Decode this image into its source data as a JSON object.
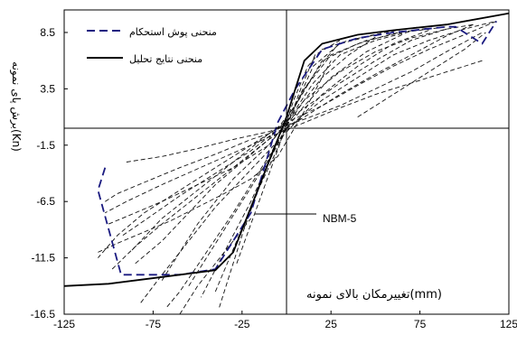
{
  "chart_data": {
    "type": "line",
    "title": "",
    "xlabel": "تغییرمکان بالای نمونه(mm)",
    "ylabel": "برش پای نمونه(Kn)",
    "xlim": [
      -125,
      125
    ],
    "ylim": [
      -16.5,
      10.5
    ],
    "xticks": [
      "-125",
      "-75",
      "-25",
      "25",
      "75",
      "125"
    ],
    "yticks": [
      "8.5",
      "3.5",
      "-1.5",
      "-6.5",
      "-11.5",
      "-16.5"
    ],
    "legend_position": "top-left",
    "annotation": "NBM-5",
    "series": [
      {
        "name": "منحنی پوش استحکام",
        "style": "dashed",
        "color": "#1a1a80",
        "x": [
          -102,
          -106,
          -93,
          -70,
          -60,
          -40,
          -20,
          -5,
          5,
          20,
          40,
          60,
          90,
          95,
          110,
          118
        ],
        "y": [
          -3.5,
          -5.5,
          -13.0,
          -13.0,
          -13.0,
          -12.5,
          -7.5,
          0.5,
          3.5,
          7.0,
          8.0,
          8.5,
          9.0,
          9.0,
          7.5,
          9.5
        ]
      },
      {
        "name": "منحنی نتایج تحلیل",
        "style": "solid",
        "color": "#000000",
        "x": [
          -125,
          -100,
          -80,
          -60,
          -40,
          -30,
          -15,
          0,
          5,
          10,
          20,
          40,
          60,
          90,
          125
        ],
        "y": [
          -14.0,
          -13.8,
          -13.4,
          -13.0,
          -12.6,
          -11.0,
          -5.0,
          1.0,
          3.5,
          6.0,
          7.5,
          8.3,
          8.7,
          9.2,
          10.2
        ]
      }
    ],
    "hysteresis_loops": [
      {
        "x": [
          -102,
          -95,
          -80,
          -60,
          -40,
          -20,
          0,
          20,
          40,
          60,
          80,
          100,
          110,
          118
        ],
        "y": [
          -6.5,
          -5.8,
          -4.8,
          -3.5,
          -2.3,
          -1.0,
          0.0,
          2.5,
          4.5,
          6.5,
          7.8,
          8.8,
          9.2,
          9.5
        ]
      },
      {
        "x": [
          118,
          100,
          80,
          60,
          40,
          20,
          0,
          -20,
          -40,
          -60,
          -80,
          -95,
          -106
        ],
        "y": [
          9.5,
          8.3,
          7.0,
          5.5,
          3.8,
          2.0,
          0.5,
          -1.5,
          -3.5,
          -5.5,
          -7.5,
          -9.5,
          -11.5
        ]
      },
      {
        "x": [
          -100,
          -85,
          -70,
          -50,
          -30,
          -10,
          10,
          30,
          50,
          70,
          90,
          105
        ],
        "y": [
          -8.5,
          -7.5,
          -6.5,
          -5.0,
          -3.5,
          -1.5,
          2.5,
          5.0,
          6.8,
          8.0,
          8.8,
          9.2
        ]
      },
      {
        "x": [
          105,
          90,
          70,
          50,
          30,
          10,
          -10,
          -30,
          -50,
          -70,
          -85,
          -98
        ],
        "y": [
          9.2,
          8.2,
          6.5,
          4.8,
          3.0,
          1.0,
          -1.0,
          -3.5,
          -6.0,
          -8.5,
          -10.5,
          -12.5
        ]
      },
      {
        "x": [
          -92,
          -80,
          -60,
          -40,
          -20,
          0,
          15,
          30,
          50,
          70,
          90
        ],
        "y": [
          -9.5,
          -8.2,
          -6.0,
          -4.0,
          -2.0,
          0.5,
          4.0,
          6.5,
          7.8,
          8.6,
          9.0
        ]
      },
      {
        "x": [
          90,
          70,
          50,
          30,
          10,
          -10,
          -30,
          -50,
          -70,
          -88
        ],
        "y": [
          8.8,
          7.8,
          6.0,
          4.0,
          1.8,
          -0.5,
          -3.0,
          -5.5,
          -8.0,
          -11.0
        ]
      },
      {
        "x": [
          -85,
          -70,
          -55,
          -40,
          -25,
          -10,
          5,
          20,
          40,
          60,
          80
        ],
        "y": [
          -12.0,
          -10.0,
          -7.5,
          -5.0,
          -3.0,
          -1.0,
          2.0,
          6.0,
          7.5,
          8.4,
          8.9
        ]
      },
      {
        "x": [
          80,
          60,
          40,
          20,
          5,
          -10,
          -25,
          -40,
          -55,
          -70,
          -82
        ],
        "y": [
          8.7,
          7.5,
          5.5,
          3.0,
          0.5,
          -2.0,
          -4.5,
          -7.0,
          -10.0,
          -13.0,
          -15.5
        ]
      },
      {
        "x": [
          -70,
          -60,
          -50,
          -40,
          -30,
          -20,
          -10,
          0,
          10,
          25,
          45,
          65
        ],
        "y": [
          -13.5,
          -11.0,
          -8.5,
          -6.5,
          -4.5,
          -3.0,
          -1.5,
          0.5,
          3.5,
          6.5,
          7.8,
          8.5
        ]
      },
      {
        "x": [
          65,
          45,
          25,
          10,
          0,
          -10,
          -20,
          -30,
          -45,
          -60,
          -68
        ],
        "y": [
          8.3,
          6.8,
          4.5,
          2.0,
          0.0,
          -2.5,
          -5.0,
          -7.5,
          -11.0,
          -14.5,
          -16.0
        ]
      },
      {
        "x": [
          -55,
          -45,
          -35,
          -25,
          -15,
          -5,
          5,
          15,
          30,
          50
        ],
        "y": [
          -14.0,
          -11.5,
          -9.0,
          -6.5,
          -4.0,
          -1.5,
          2.0,
          5.5,
          7.5,
          8.3
        ]
      },
      {
        "x": [
          50,
          35,
          20,
          10,
          0,
          -10,
          -20,
          -35,
          -48
        ],
        "y": [
          8.1,
          6.5,
          4.5,
          2.5,
          0.2,
          -3.0,
          -6.5,
          -11.0,
          -15.0
        ]
      },
      {
        "x": [
          -40,
          -32,
          -24,
          -16,
          -8,
          0,
          8,
          16,
          30
        ],
        "y": [
          -14.5,
          -11.5,
          -8.5,
          -5.5,
          -2.8,
          0.0,
          3.5,
          6.5,
          7.8
        ]
      },
      {
        "x": [
          30,
          20,
          10,
          0,
          -8,
          -16,
          -24,
          -32,
          -38
        ],
        "y": [
          7.6,
          5.8,
          3.5,
          0.8,
          -2.0,
          -5.5,
          -9.0,
          -13.0,
          -16.0
        ]
      },
      {
        "x": [
          -28,
          -20,
          -12,
          -4,
          4,
          12,
          20,
          35,
          55,
          75
        ],
        "y": [
          -12.0,
          -8.5,
          -5.0,
          -1.5,
          2.5,
          5.5,
          7.0,
          7.8,
          8.5,
          9.0
        ]
      },
      {
        "x": [
          -90,
          -70,
          -50,
          -30,
          -10,
          10,
          30,
          50,
          70,
          90,
          110
        ],
        "y": [
          -3.0,
          -2.5,
          -1.8,
          -1.0,
          -0.3,
          0.8,
          2.0,
          3.5,
          5.0,
          6.8,
          8.5
        ]
      },
      {
        "x": [
          110,
          90,
          70,
          50,
          30,
          10,
          -10,
          -30,
          -50,
          -70,
          -90,
          -102
        ],
        "y": [
          6.0,
          5.0,
          4.0,
          3.0,
          1.8,
          0.5,
          -0.8,
          -2.2,
          -3.6,
          -5.0,
          -6.5,
          -7.5
        ]
      },
      {
        "x": [
          -106,
          -95,
          -80,
          -65,
          -50,
          -35,
          -20,
          -5,
          10,
          25
        ],
        "y": [
          -11.0,
          -10.2,
          -9.2,
          -8.2,
          -7.0,
          -5.8,
          -4.5,
          -2.5,
          1.5,
          6.0
        ]
      },
      {
        "x": [
          40,
          55,
          70,
          85,
          100,
          112
        ],
        "y": [
          1.0,
          2.5,
          4.0,
          5.5,
          7.0,
          8.5
        ]
      },
      {
        "x": [
          -60,
          -50,
          -40,
          -30,
          -20
        ],
        "y": [
          -16.5,
          -14.0,
          -12.0,
          -10.0,
          -8.0
        ]
      }
    ]
  }
}
